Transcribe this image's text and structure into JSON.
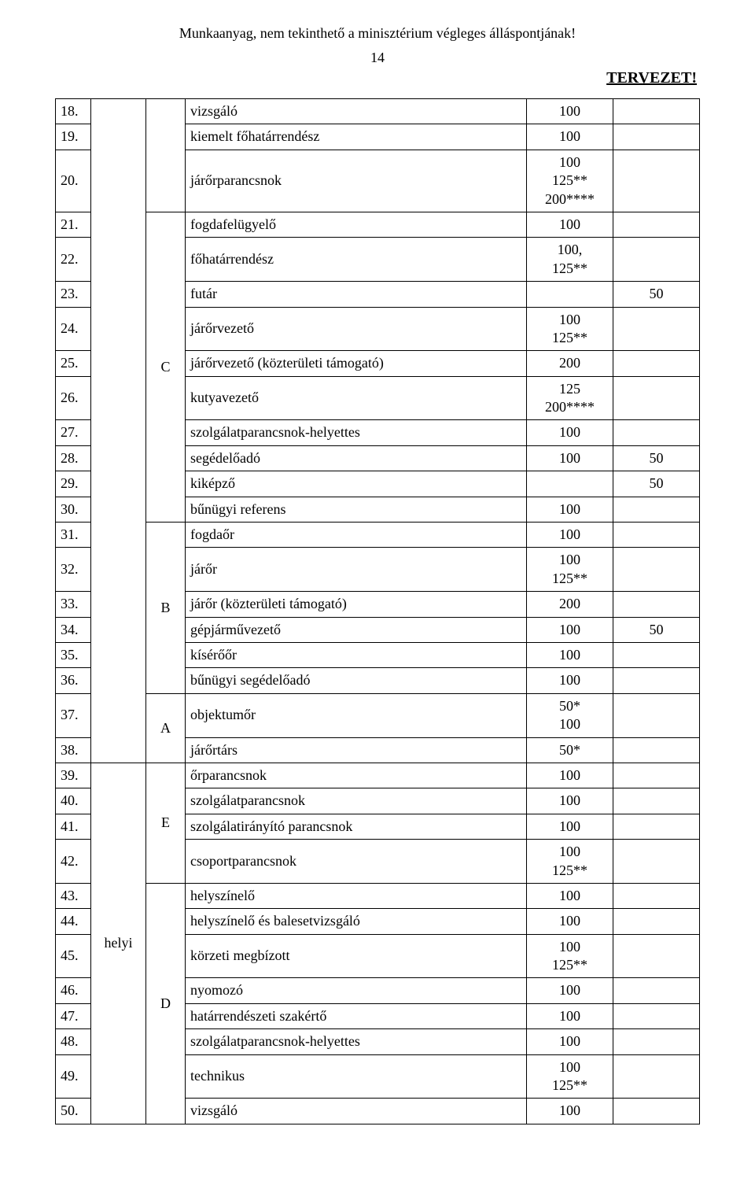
{
  "header_text": "Munkaanyag, nem tekinthető a minisztérium végleges álláspontjának!",
  "page_number": "14",
  "tervezet_label": "TERVEZET!",
  "scope_label": "helyi",
  "letters": {
    "c": "C",
    "b": "B",
    "a": "A",
    "e": "E",
    "d": "D"
  },
  "rows": {
    "r18": {
      "num": "18.",
      "name": "vizsgáló",
      "val1": "100",
      "val2": ""
    },
    "r19": {
      "num": "19.",
      "name": "kiemelt főhatárrendész",
      "val1": "100",
      "val2": ""
    },
    "r20": {
      "num": "20.",
      "name": "járőrparancsnok",
      "val1": "100\n125**\n200****",
      "val2": ""
    },
    "r21": {
      "num": "21.",
      "name": "fogdafelügyelő",
      "val1": "100",
      "val2": ""
    },
    "r22": {
      "num": "22.",
      "name": "főhatárrendész",
      "val1": "100,\n125**",
      "val2": ""
    },
    "r23": {
      "num": "23.",
      "name": "futár",
      "val1": "",
      "val2": "50"
    },
    "r24": {
      "num": "24.",
      "name": "járőrvezető",
      "val1": "100\n125**",
      "val2": ""
    },
    "r25": {
      "num": "25.",
      "name": "járőrvezető (közterületi támogató)",
      "val1": "200",
      "val2": ""
    },
    "r26": {
      "num": "26.",
      "name": "kutyavezető",
      "val1": "125\n200****",
      "val2": ""
    },
    "r27": {
      "num": "27.",
      "name": "szolgálatparancsnok-helyettes",
      "val1": "100",
      "val2": ""
    },
    "r28": {
      "num": "28.",
      "name": "segédelőadó",
      "val1": "100",
      "val2": "50"
    },
    "r29": {
      "num": "29.",
      "name": "kiképző",
      "val1": "",
      "val2": "50"
    },
    "r30": {
      "num": "30.",
      "name": "bűnügyi referens",
      "val1": "100",
      "val2": ""
    },
    "r31": {
      "num": "31.",
      "name": "fogdaőr",
      "val1": "100",
      "val2": ""
    },
    "r32": {
      "num": "32.",
      "name": "járőr",
      "val1": "100\n125**",
      "val2": ""
    },
    "r33": {
      "num": "33.",
      "name": "járőr (közterületi támogató)",
      "val1": "200",
      "val2": ""
    },
    "r34": {
      "num": "34.",
      "name": "gépjárművezető",
      "val1": "100",
      "val2": "50"
    },
    "r35": {
      "num": "35.",
      "name": "kísérőőr",
      "val1": "100",
      "val2": ""
    },
    "r36": {
      "num": "36.",
      "name": "bűnügyi segédelőadó",
      "val1": "100",
      "val2": ""
    },
    "r37": {
      "num": "37.",
      "name": "objektumőr",
      "val1": "50*\n100",
      "val2": ""
    },
    "r38": {
      "num": "38.",
      "name": "járőrtárs",
      "val1": "50*",
      "val2": ""
    },
    "r39": {
      "num": "39.",
      "name": "őrparancsnok",
      "val1": "100",
      "val2": ""
    },
    "r40": {
      "num": "40.",
      "name": "szolgálatparancsnok",
      "val1": "100",
      "val2": ""
    },
    "r41": {
      "num": "41.",
      "name": "szolgálatirányító parancsnok",
      "val1": "100",
      "val2": ""
    },
    "r42": {
      "num": "42.",
      "name": "csoportparancsnok",
      "val1": "100\n125**",
      "val2": ""
    },
    "r43": {
      "num": "43.",
      "name": "helyszínelő",
      "val1": "100",
      "val2": ""
    },
    "r44": {
      "num": "44.",
      "name": "helyszínelő és balesetvizsgáló",
      "val1": "100",
      "val2": ""
    },
    "r45": {
      "num": "45.",
      "name": "körzeti megbízott",
      "val1": "100\n125**",
      "val2": ""
    },
    "r46": {
      "num": "46.",
      "name": "nyomozó",
      "val1": "100",
      "val2": ""
    },
    "r47": {
      "num": "47.",
      "name": "határrendészeti szakértő",
      "val1": "100",
      "val2": ""
    },
    "r48": {
      "num": "48.",
      "name": "szolgálatparancsnok-helyettes",
      "val1": "100",
      "val2": ""
    },
    "r49": {
      "num": "49.",
      "name": "technikus",
      "val1": "100\n125**",
      "val2": ""
    },
    "r50": {
      "num": "50.",
      "name": "vizsgáló",
      "val1": "100",
      "val2": ""
    }
  }
}
